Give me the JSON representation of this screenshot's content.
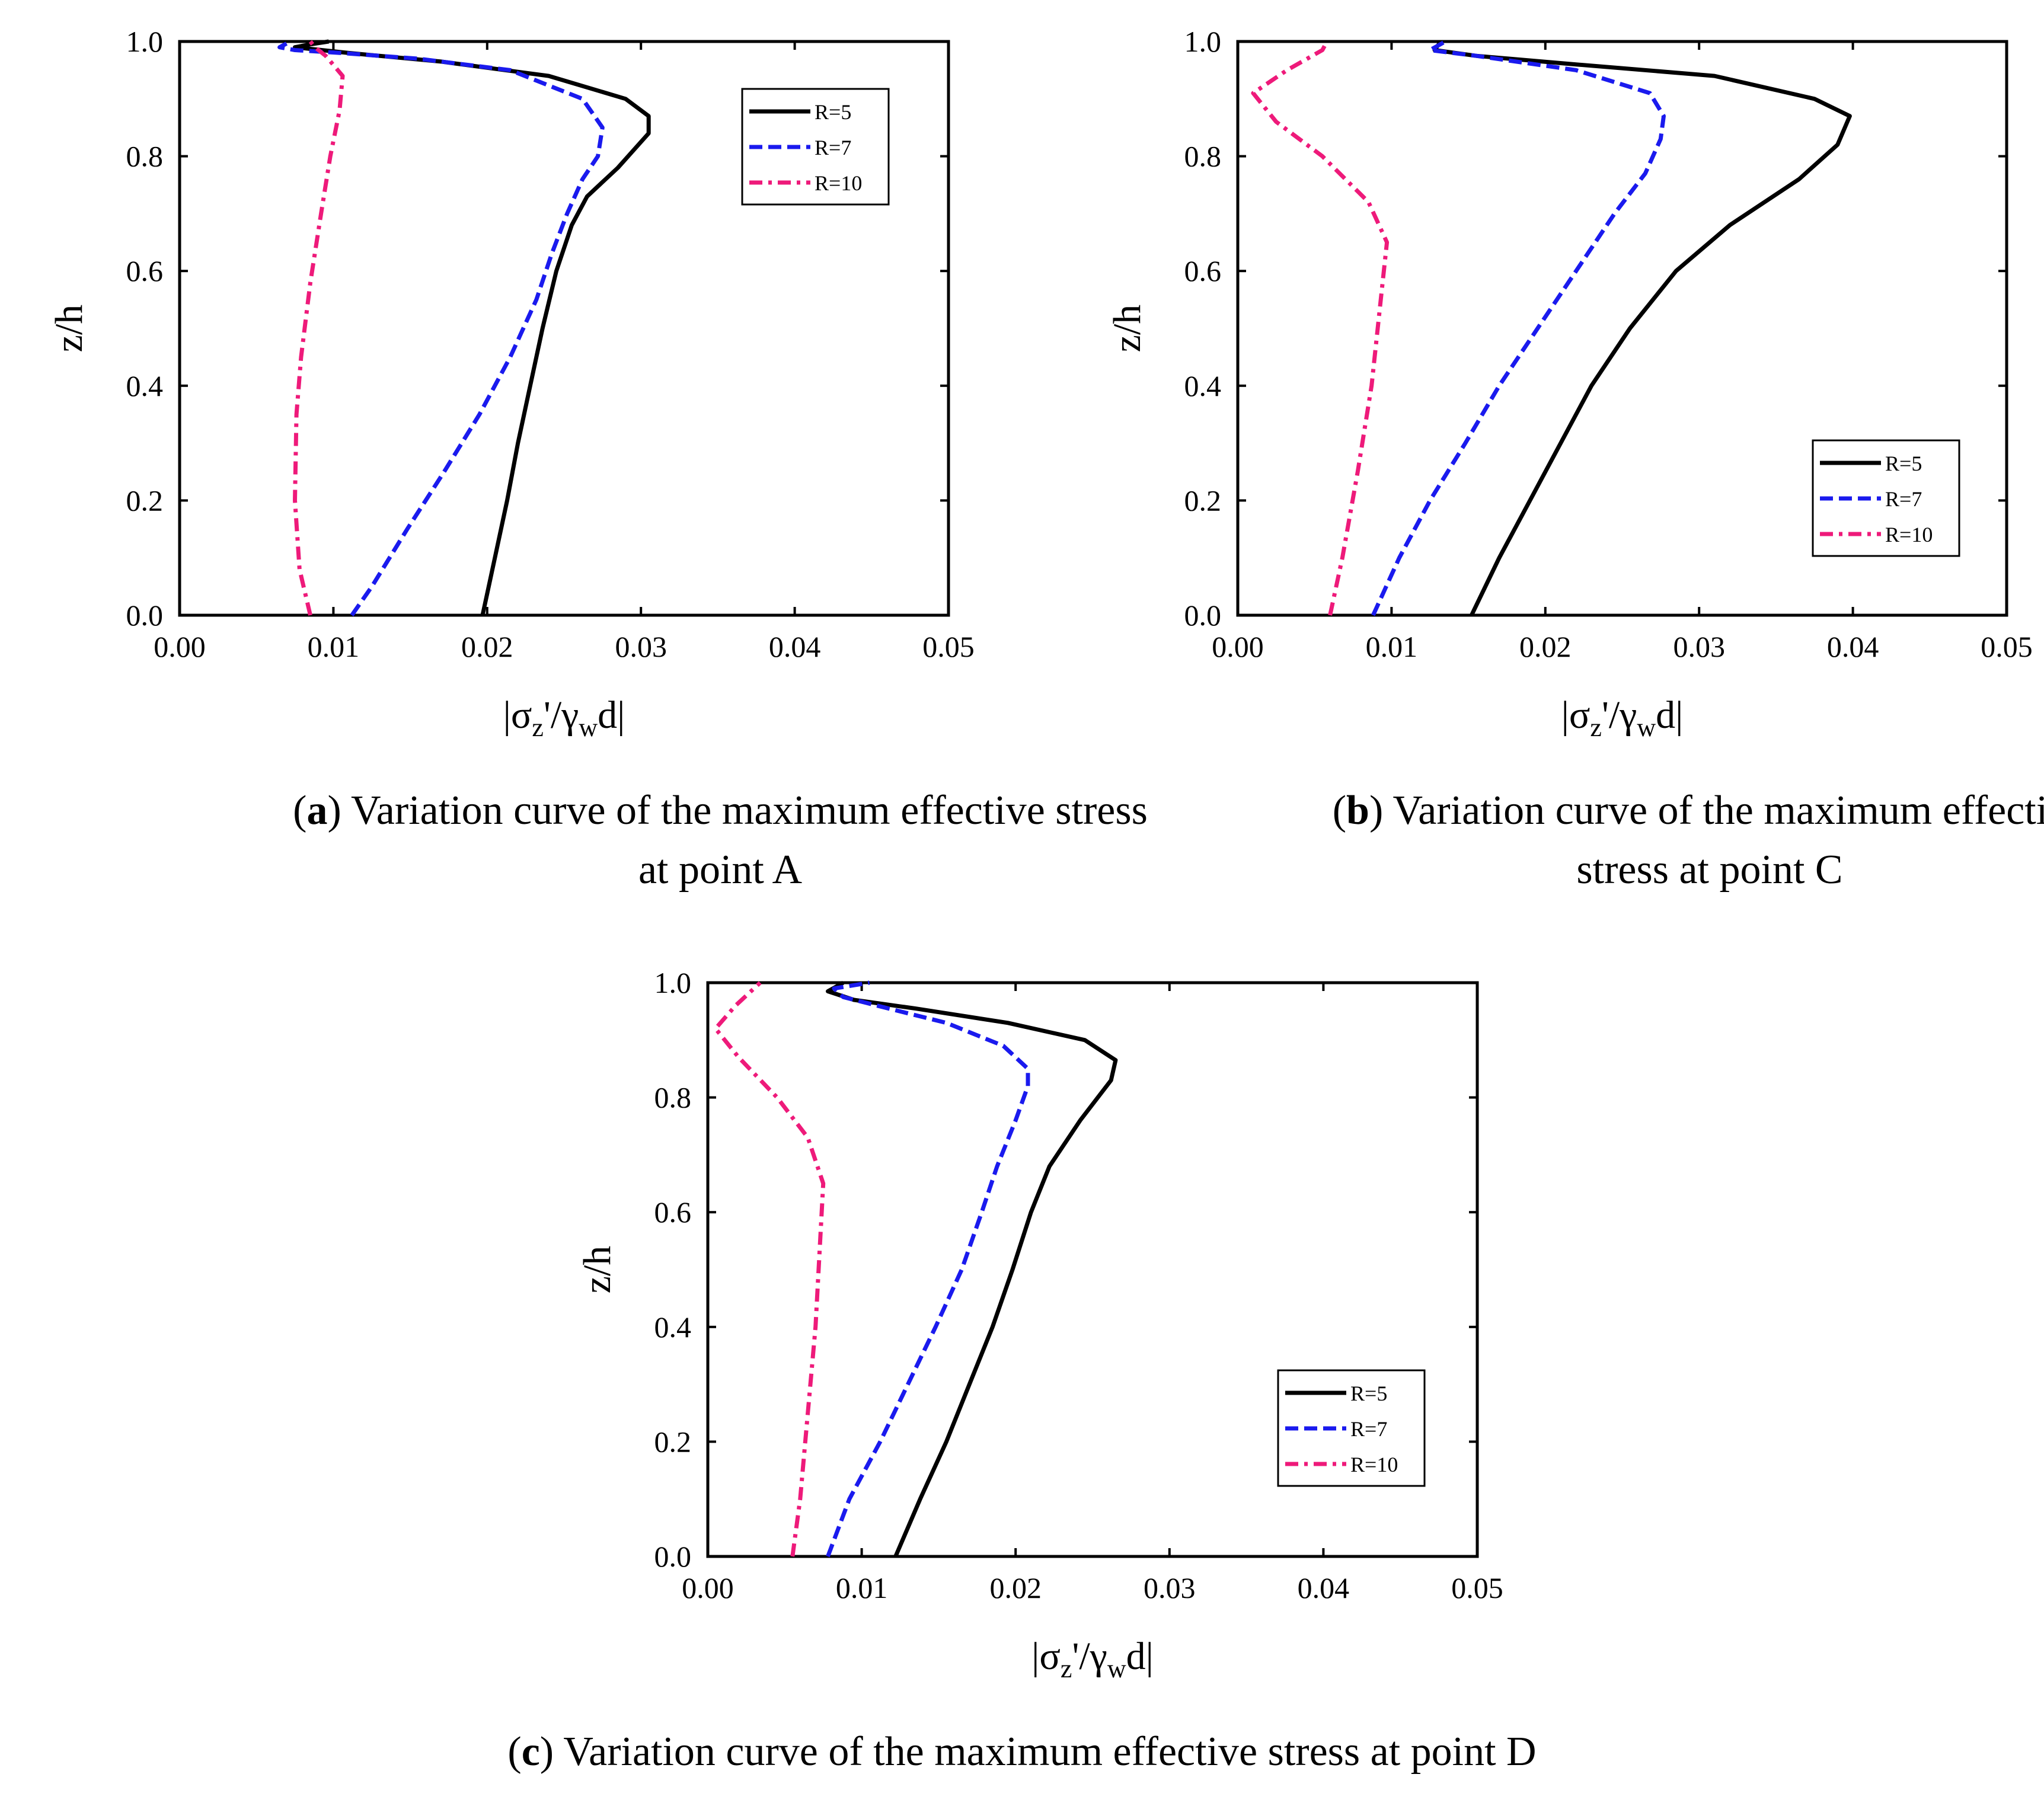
{
  "chart_data": [
    {
      "type": "line",
      "panel": "a",
      "caption_letter": "a",
      "caption_line1": "Variation curve of the maximum effective stress",
      "caption_line2": "at point A",
      "xlabel": "|σz'/γwd|",
      "ylabel": "z/h",
      "xlim": [
        0,
        0.05
      ],
      "ylim": [
        0,
        1.0
      ],
      "xticks": [
        "0.00",
        "0.01",
        "0.02",
        "0.03",
        "0.04",
        "0.05"
      ],
      "yticks": [
        "0.0",
        "0.2",
        "0.4",
        "0.6",
        "0.8",
        "1.0"
      ],
      "legend_position": "top-right",
      "series": [
        {
          "name": "R=5",
          "color": "#000000",
          "style": "solid",
          "points": [
            [
              0.0197,
              0
            ],
            [
              0.0205,
              0.1
            ],
            [
              0.0213,
              0.2
            ],
            [
              0.022,
              0.3
            ],
            [
              0.0228,
              0.4
            ],
            [
              0.0236,
              0.5
            ],
            [
              0.0245,
              0.6
            ],
            [
              0.0255,
              0.68
            ],
            [
              0.0265,
              0.73
            ],
            [
              0.0285,
              0.78
            ],
            [
              0.0305,
              0.84
            ],
            [
              0.0305,
              0.87
            ],
            [
              0.029,
              0.9
            ],
            [
              0.024,
              0.94
            ],
            [
              0.017,
              0.965
            ],
            [
              0.011,
              0.98
            ],
            [
              0.0075,
              0.99
            ],
            [
              0.0085,
              0.995
            ],
            [
              0.0097,
              1.0
            ]
          ]
        },
        {
          "name": "R=7",
          "color": "#1a1aee",
          "style": "dash",
          "points": [
            [
              0.0112,
              0
            ],
            [
              0.0125,
              0.05
            ],
            [
              0.0148,
              0.15
            ],
            [
              0.0172,
              0.25
            ],
            [
              0.0195,
              0.35
            ],
            [
              0.0215,
              0.45
            ],
            [
              0.0232,
              0.55
            ],
            [
              0.0242,
              0.63
            ],
            [
              0.0252,
              0.7
            ],
            [
              0.0262,
              0.76
            ],
            [
              0.0272,
              0.8
            ],
            [
              0.0275,
              0.85
            ],
            [
              0.0262,
              0.9
            ],
            [
              0.0215,
              0.95
            ],
            [
              0.0155,
              0.97
            ],
            [
              0.0105,
              0.98
            ],
            [
              0.0075,
              0.985
            ],
            [
              0.0065,
              0.99
            ],
            [
              0.0072,
              1.0
            ]
          ]
        },
        {
          "name": "R=10",
          "color": "#ee1a7a",
          "style": "dashdot",
          "points": [
            [
              0.0085,
              0
            ],
            [
              0.0078,
              0.08
            ],
            [
              0.0075,
              0.2
            ],
            [
              0.0076,
              0.35
            ],
            [
              0.0079,
              0.45
            ],
            [
              0.0085,
              0.58
            ],
            [
              0.0092,
              0.7
            ],
            [
              0.0098,
              0.8
            ],
            [
              0.0104,
              0.88
            ],
            [
              0.0106,
              0.94
            ],
            [
              0.0095,
              0.975
            ],
            [
              0.0088,
              0.99
            ],
            [
              0.0085,
              1.0
            ]
          ]
        }
      ],
      "legend": [
        "R=5",
        "R=7",
        "R=10"
      ]
    },
    {
      "type": "line",
      "panel": "b",
      "caption_letter": "b",
      "caption_line1": "Variation curve of the maximum effective",
      "caption_line2": "stress at point C",
      "xlabel": "|σz'/γwd|",
      "ylabel": "z/h",
      "xlim": [
        0,
        0.05
      ],
      "ylim": [
        0,
        1.0
      ],
      "xticks": [
        "0.00",
        "0.01",
        "0.02",
        "0.03",
        "0.04",
        "0.05"
      ],
      "yticks": [
        "0.0",
        "0.2",
        "0.4",
        "0.6",
        "0.8",
        "1.0"
      ],
      "legend_position": "bottom-right",
      "series": [
        {
          "name": "R=5",
          "color": "#000000",
          "style": "solid",
          "points": [
            [
              0.0152,
              0
            ],
            [
              0.017,
              0.1
            ],
            [
              0.019,
              0.2
            ],
            [
              0.021,
              0.3
            ],
            [
              0.023,
              0.4
            ],
            [
              0.0255,
              0.5
            ],
            [
              0.0285,
              0.6
            ],
            [
              0.032,
              0.68
            ],
            [
              0.0365,
              0.76
            ],
            [
              0.039,
              0.82
            ],
            [
              0.0398,
              0.87
            ],
            [
              0.0375,
              0.9
            ],
            [
              0.031,
              0.94
            ],
            [
              0.022,
              0.96
            ],
            [
              0.0155,
              0.975
            ],
            [
              0.0128,
              0.985
            ],
            [
              0.0132,
              1.0
            ]
          ]
        },
        {
          "name": "R=7",
          "color": "#1a1aee",
          "style": "dash",
          "points": [
            [
              0.0088,
              0
            ],
            [
              0.0105,
              0.1
            ],
            [
              0.0125,
              0.2
            ],
            [
              0.0148,
              0.3
            ],
            [
              0.017,
              0.4
            ],
            [
              0.0195,
              0.5
            ],
            [
              0.022,
              0.6
            ],
            [
              0.0245,
              0.7
            ],
            [
              0.0265,
              0.77
            ],
            [
              0.0275,
              0.83
            ],
            [
              0.0277,
              0.87
            ],
            [
              0.0268,
              0.91
            ],
            [
              0.022,
              0.95
            ],
            [
              0.0155,
              0.975
            ],
            [
              0.0125,
              0.985
            ],
            [
              0.0135,
              1.0
            ]
          ]
        },
        {
          "name": "R=10",
          "color": "#ee1a7a",
          "style": "dashdot",
          "points": [
            [
              0.006,
              0
            ],
            [
              0.0068,
              0.1
            ],
            [
              0.0078,
              0.25
            ],
            [
              0.0087,
              0.4
            ],
            [
              0.0093,
              0.55
            ],
            [
              0.0097,
              0.65
            ],
            [
              0.0085,
              0.72
            ],
            [
              0.0055,
              0.8
            ],
            [
              0.0025,
              0.86
            ],
            [
              0.001,
              0.91
            ],
            [
              0.0032,
              0.95
            ],
            [
              0.0055,
              0.985
            ],
            [
              0.0058,
              1.0
            ]
          ]
        }
      ],
      "legend": [
        "R=5",
        "R=7",
        "R=10"
      ]
    },
    {
      "type": "line",
      "panel": "c",
      "caption_letter": "c",
      "caption_line1": "Variation curve of the maximum effective stress at point D",
      "caption_line2": "",
      "xlabel": "|σz'/γwd|",
      "ylabel": "z/h",
      "xlim": [
        0,
        0.05
      ],
      "ylim": [
        0,
        1.0
      ],
      "xticks": [
        "0.00",
        "0.01",
        "0.02",
        "0.03",
        "0.04",
        "0.05"
      ],
      "yticks": [
        "0.0",
        "0.2",
        "0.4",
        "0.6",
        "0.8",
        "1.0"
      ],
      "legend_position": "bottom-right",
      "series": [
        {
          "name": "R=5",
          "color": "#000000",
          "style": "solid",
          "points": [
            [
              0.0122,
              0
            ],
            [
              0.0138,
              0.1
            ],
            [
              0.0155,
              0.2
            ],
            [
              0.017,
              0.3
            ],
            [
              0.0185,
              0.4
            ],
            [
              0.0198,
              0.5
            ],
            [
              0.021,
              0.6
            ],
            [
              0.0222,
              0.68
            ],
            [
              0.0242,
              0.76
            ],
            [
              0.0262,
              0.83
            ],
            [
              0.0265,
              0.865
            ],
            [
              0.0245,
              0.9
            ],
            [
              0.0195,
              0.93
            ],
            [
              0.0135,
              0.955
            ],
            [
              0.0095,
              0.97
            ],
            [
              0.0078,
              0.985
            ],
            [
              0.0088,
              1.0
            ]
          ]
        },
        {
          "name": "R=7",
          "color": "#1a1aee",
          "style": "dash",
          "points": [
            [
              0.0078,
              0
            ],
            [
              0.0092,
              0.1
            ],
            [
              0.0112,
              0.2
            ],
            [
              0.013,
              0.3
            ],
            [
              0.0148,
              0.4
            ],
            [
              0.0165,
              0.5
            ],
            [
              0.0178,
              0.6
            ],
            [
              0.0188,
              0.68
            ],
            [
              0.02,
              0.76
            ],
            [
              0.0208,
              0.82
            ],
            [
              0.0208,
              0.85
            ],
            [
              0.0192,
              0.89
            ],
            [
              0.0155,
              0.93
            ],
            [
              0.011,
              0.96
            ],
            [
              0.0088,
              0.975
            ],
            [
              0.0082,
              0.99
            ],
            [
              0.0105,
              1.0
            ]
          ]
        },
        {
          "name": "R=10",
          "color": "#ee1a7a",
          "style": "dashdot",
          "points": [
            [
              0.0055,
              0
            ],
            [
              0.006,
              0.1
            ],
            [
              0.0065,
              0.25
            ],
            [
              0.007,
              0.4
            ],
            [
              0.0073,
              0.55
            ],
            [
              0.0075,
              0.65
            ],
            [
              0.0065,
              0.73
            ],
            [
              0.0045,
              0.8
            ],
            [
              0.002,
              0.87
            ],
            [
              0.0005,
              0.92
            ],
            [
              0.0018,
              0.96
            ],
            [
              0.003,
              0.99
            ],
            [
              0.0034,
              1.0
            ]
          ]
        }
      ],
      "legend": [
        "R=5",
        "R=7",
        "R=10"
      ]
    }
  ]
}
